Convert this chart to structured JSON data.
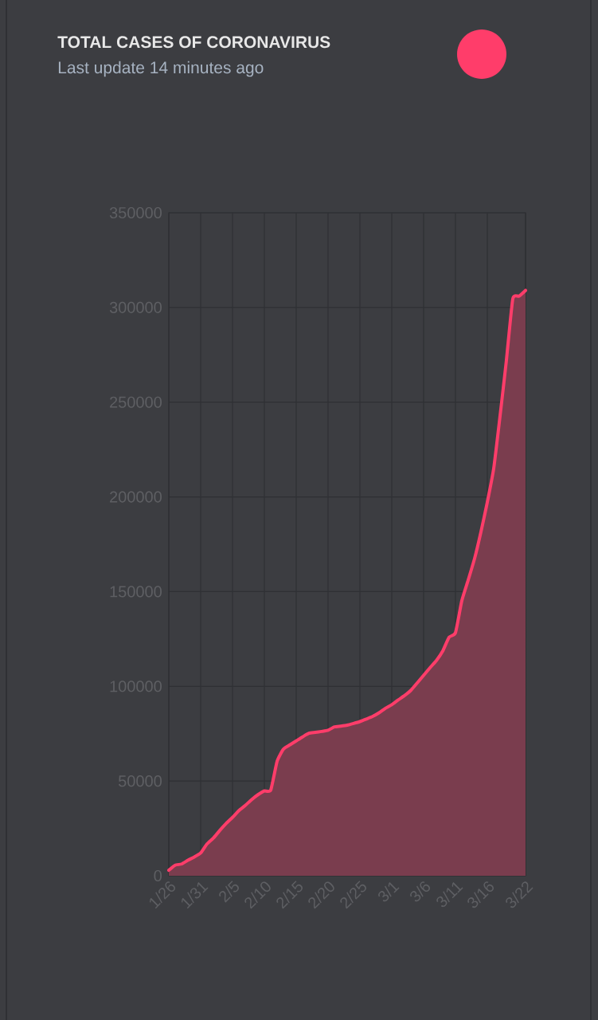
{
  "chart_data": {
    "type": "area",
    "title": "TOTAL CASES OF CORONAVIRUS",
    "subtitle": "Last update 14 minutes ago",
    "categories": [
      "1/26",
      null,
      null,
      null,
      null,
      "1/31",
      null,
      null,
      null,
      null,
      "2/5",
      null,
      null,
      null,
      null,
      "2/10",
      null,
      null,
      null,
      null,
      "2/15",
      null,
      null,
      null,
      null,
      "2/20",
      null,
      null,
      null,
      null,
      "2/25",
      null,
      null,
      null,
      null,
      "3/1",
      null,
      null,
      null,
      null,
      "3/6",
      null,
      null,
      null,
      null,
      "3/11",
      null,
      null,
      null,
      null,
      "3/16",
      null,
      null,
      null,
      null,
      null,
      "3/22"
    ],
    "values": [
      2900,
      5600,
      6200,
      8200,
      9900,
      12000,
      16800,
      19900,
      23900,
      27600,
      30800,
      34400,
      37100,
      40200,
      42800,
      44800,
      45200,
      60400,
      66900,
      69100,
      71200,
      73300,
      75200,
      75700,
      76200,
      76800,
      78600,
      79000,
      79500,
      80400,
      81400,
      82700,
      84100,
      86000,
      88400,
      90300,
      92800,
      95100,
      97900,
      101800,
      105800,
      109800,
      113600,
      118600,
      125900,
      128300,
      145200,
      156100,
      167400,
      181500,
      197200,
      214900,
      242700,
      272200,
      304500,
      306000,
      309000
    ],
    "color": "#ff3d6a",
    "ylim": [
      0,
      350000
    ],
    "yticks": [
      0,
      50000,
      100000,
      150000,
      200000,
      250000,
      300000,
      350000
    ],
    "grid": true
  }
}
